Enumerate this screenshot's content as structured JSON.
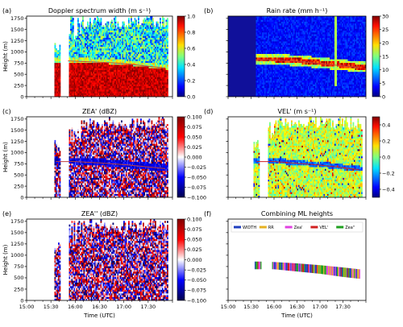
{
  "chart_data": [
    {
      "panel": "(a)",
      "type": "heatmap",
      "title": "Doppler spectrum width (m s⁻¹)",
      "ylabel": "Height (m)",
      "ylim": [
        0,
        1800
      ],
      "yticks": [
        0,
        250,
        500,
        750,
        1000,
        1250,
        1500,
        1750
      ],
      "colorbar": {
        "ticks": [
          "0.0",
          "0.2",
          "0.4",
          "0.6",
          "0.8",
          "1.0"
        ],
        "min": 0,
        "max": 1,
        "colormap": "jet"
      },
      "ml_line": [
        [
          15.85,
          800
        ],
        [
          16.5,
          770
        ],
        [
          17.0,
          740
        ],
        [
          17.5,
          680
        ],
        [
          17.85,
          640
        ]
      ]
    },
    {
      "panel": "(b)",
      "type": "heatmap",
      "title": "Rain rate (mm h⁻¹)",
      "colorbar": {
        "ticks": [
          "0",
          "5",
          "10",
          "15",
          "20",
          "25",
          "30"
        ],
        "min": 0,
        "max": 30,
        "colormap": "jet"
      },
      "ml_line": [
        [
          15.62,
          820
        ],
        [
          16.0,
          820
        ],
        [
          16.5,
          790
        ],
        [
          17.0,
          740
        ],
        [
          17.5,
          690
        ],
        [
          17.85,
          650
        ]
      ]
    },
    {
      "panel": "(c)",
      "type": "heatmap",
      "title": "ZEA' (dBZ)",
      "ylabel": "Height (m)",
      "ylim": [
        0,
        1800
      ],
      "yticks": [
        0,
        250,
        500,
        750,
        1000,
        1250,
        1500,
        1750
      ],
      "colorbar": {
        "ticks": [
          "0.100",
          "0.075",
          "0.050",
          "0.025",
          "0.000",
          "−0.025",
          "−0.050",
          "−0.075",
          "−0.100"
        ],
        "min": -0.1,
        "max": 0.1,
        "colormap": "seismic"
      },
      "ml_line": [
        [
          15.6,
          800
        ],
        [
          16.0,
          800
        ],
        [
          16.5,
          770
        ],
        [
          17.0,
          730
        ],
        [
          17.5,
          680
        ],
        [
          17.85,
          640
        ]
      ]
    },
    {
      "panel": "(d)",
      "type": "heatmap",
      "title": "VEL' (m s⁻¹)",
      "colorbar": {
        "ticks": [
          "0.4",
          "0.2",
          "0.0",
          "−0.2",
          "−0.4"
        ],
        "min": -0.5,
        "max": 0.5,
        "colormap": "jet"
      },
      "ml_line": [
        [
          15.62,
          800
        ],
        [
          16.0,
          800
        ],
        [
          16.5,
          760
        ],
        [
          17.0,
          720
        ],
        [
          17.5,
          660
        ],
        [
          17.85,
          620
        ]
      ]
    },
    {
      "panel": "(e)",
      "type": "heatmap",
      "title": "ZEA'' (dBZ)",
      "ylabel": "Height (m)",
      "ylim": [
        0,
        1800
      ],
      "yticks": [
        0,
        250,
        500,
        750,
        1000,
        1250,
        1500,
        1750
      ],
      "xlabel": "Time (UTC)",
      "xticks": [
        "15:00",
        "15:30",
        "16:00",
        "16:30",
        "17:00",
        "17:30"
      ],
      "colorbar": {
        "ticks": [
          "0.100",
          "0.075",
          "0.050",
          "0.025",
          "0.000",
          "−0.025",
          "−0.050",
          "−0.075",
          "−0.100"
        ],
        "min": -0.1,
        "max": 0.1,
        "colormap": "seismic"
      }
    },
    {
      "panel": "(f)",
      "type": "line",
      "title": "Combining ML heights",
      "xlabel": "Time (UTC)",
      "xticks": [
        "15:00",
        "15:30",
        "16:00",
        "16:30",
        "17:00",
        "17:30"
      ],
      "legend": {
        "placement": "top",
        "entries": [
          {
            "name": "WIDTH",
            "color": "#1f3fbf"
          },
          {
            "name": "RR",
            "color": "#e6b020"
          },
          {
            "name": "Zea'",
            "color": "#e040e0"
          },
          {
            "name": "VEL'",
            "color": "#d02020"
          },
          {
            "name": "Zea''",
            "color": "#20a020"
          }
        ]
      },
      "series_top": [
        [
          15.58,
          860
        ],
        [
          15.7,
          860
        ],
        [
          16.0,
          850
        ],
        [
          16.5,
          820
        ],
        [
          17.0,
          780
        ],
        [
          17.5,
          730
        ],
        [
          17.85,
          690
        ]
      ],
      "series_bottom": [
        [
          15.58,
          690
        ],
        [
          15.7,
          690
        ],
        [
          16.0,
          690
        ],
        [
          16.5,
          640
        ],
        [
          17.0,
          590
        ],
        [
          17.5,
          520
        ],
        [
          17.85,
          480
        ]
      ]
    }
  ]
}
